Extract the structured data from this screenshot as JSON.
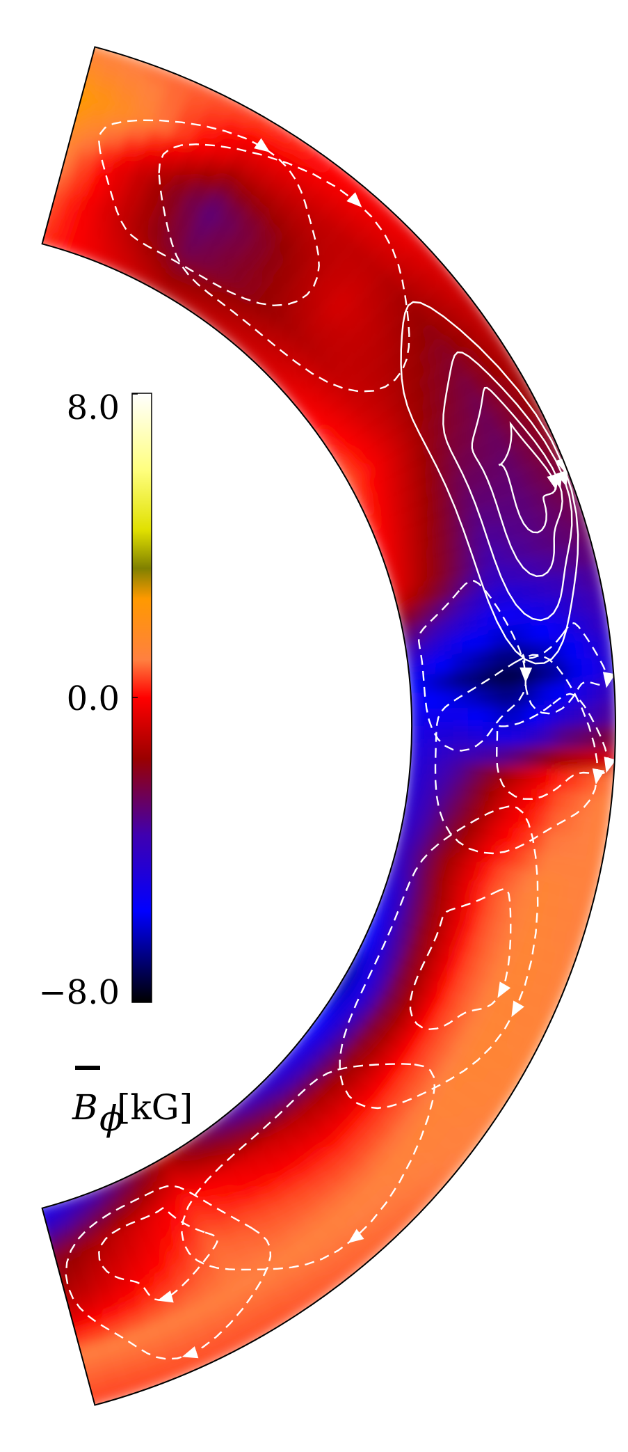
{
  "chart_data": {
    "type": "heatmap",
    "title": "",
    "colorbar": {
      "label": "B̄ϕ[kG]",
      "label_parts": {
        "symbol": "B",
        "subscript": "ϕ",
        "unit": "[kG]"
      },
      "ticks": [
        "8.0",
        "0.0",
        "−8.0"
      ],
      "tick_values": [
        8.0,
        0.0,
        -8.0
      ],
      "range": [
        -8.0,
        8.0
      ],
      "colormap": [
        {
          "value": -8.0,
          "color": "#000000"
        },
        {
          "value": -5.6,
          "color": "#0000ff"
        },
        {
          "value": -3.6,
          "color": "#4000b0"
        },
        {
          "value": -1.6,
          "color": "#9a0000"
        },
        {
          "value": 0.0,
          "color": "#ff0000"
        },
        {
          "value": 1.0,
          "color": "#ff8040"
        },
        {
          "value": 2.6,
          "color": "#ff9900"
        },
        {
          "value": 3.4,
          "color": "#808000"
        },
        {
          "value": 4.4,
          "color": "#e0e000"
        },
        {
          "value": 6.0,
          "color": "#ffff80"
        },
        {
          "value": 8.0,
          "color": "#ffffff"
        }
      ]
    },
    "domain": {
      "shape": "meridional shell wedge",
      "latitude_range_deg": [
        -75,
        75
      ],
      "radius_fraction_inner_to_outer": 0.71
    },
    "field": {
      "grid": "latitude (deg, north positive) × depth fraction (0 = inner edge, 1 = outer edge)",
      "latitudes": [
        75,
        60,
        45,
        30,
        15,
        5,
        0,
        -5,
        -15,
        -30,
        -45,
        -60,
        -75
      ],
      "depths": [
        0.0,
        0.25,
        0.5,
        0.75,
        1.0
      ],
      "values": [
        [
          0.3,
          0.6,
          1.2,
          2.6,
          1.0
        ],
        [
          -1.0,
          -2.5,
          -3.0,
          -0.8,
          0.6
        ],
        [
          -0.5,
          -1.2,
          -0.6,
          -1.0,
          -0.2
        ],
        [
          0.7,
          -0.5,
          -1.8,
          -2.5,
          -1.2
        ],
        [
          -0.3,
          -2.0,
          -3.8,
          -3.2,
          -2.8
        ],
        [
          -5.5,
          -6.8,
          -7.5,
          -6.5,
          -4.5
        ],
        [
          -5.0,
          -4.8,
          -6.0,
          -4.0,
          -3.0
        ],
        [
          -4.8,
          -3.2,
          -1.0,
          0.5,
          1.2
        ],
        [
          -4.5,
          -1.5,
          0.6,
          1.3,
          1.0
        ],
        [
          -7.0,
          -2.5,
          0.4,
          1.3,
          1.2
        ],
        [
          -5.0,
          -1.2,
          0.3,
          1.1,
          0.8
        ],
        [
          -1.5,
          0.2,
          0.8,
          1.0,
          0.6
        ],
        [
          -5.5,
          -2.0,
          -1.0,
          1.0,
          0.5
        ]
      ]
    },
    "meridional_circulation": {
      "style": "white contour lines with arrowheads",
      "solid": "positive stream function (counter-clockwise)",
      "dashed": "negative stream function (clockwise)"
    }
  }
}
